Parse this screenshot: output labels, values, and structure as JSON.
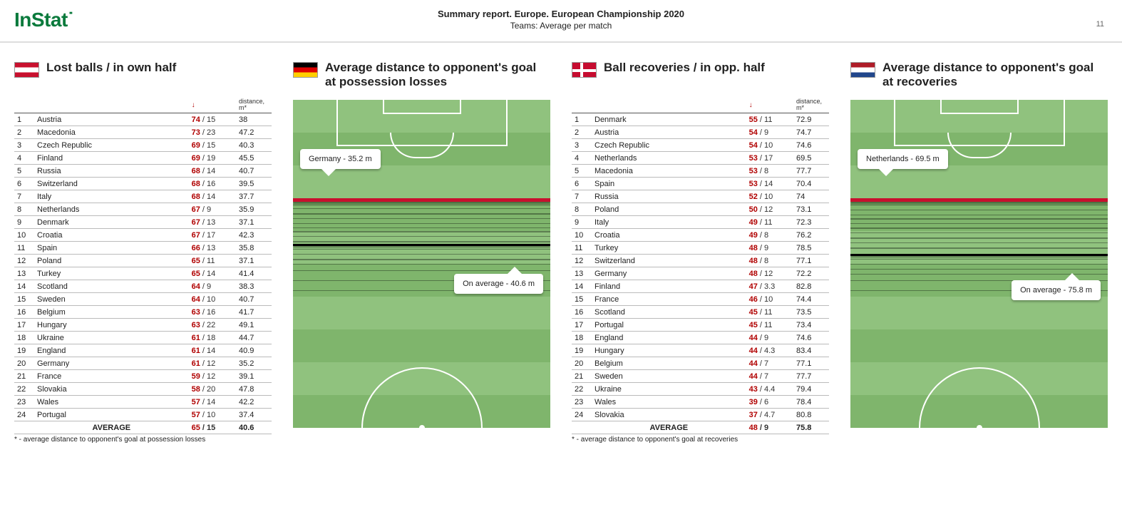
{
  "header": {
    "logo_text": "InStat",
    "title": "Summary report. Europe. European Championship 2020",
    "subtitle": "Teams: Average per match",
    "page_number": "11"
  },
  "col1": {
    "flag": "austria",
    "title": "Lost balls / in own half",
    "sort_icon": "↓",
    "dist_header": "distance, m*",
    "rows": [
      {
        "rank": "1",
        "team": "Austria",
        "v1": "74",
        "v2": "15",
        "dist": "38"
      },
      {
        "rank": "2",
        "team": "Macedonia",
        "v1": "73",
        "v2": "23",
        "dist": "47.2"
      },
      {
        "rank": "3",
        "team": "Czech Republic",
        "v1": "69",
        "v2": "15",
        "dist": "40.3"
      },
      {
        "rank": "4",
        "team": "Finland",
        "v1": "69",
        "v2": "19",
        "dist": "45.5"
      },
      {
        "rank": "5",
        "team": "Russia",
        "v1": "68",
        "v2": "14",
        "dist": "40.7"
      },
      {
        "rank": "6",
        "team": "Switzerland",
        "v1": "68",
        "v2": "16",
        "dist": "39.5"
      },
      {
        "rank": "7",
        "team": "Italy",
        "v1": "68",
        "v2": "14",
        "dist": "37.7"
      },
      {
        "rank": "8",
        "team": "Netherlands",
        "v1": "67",
        "v2": "9",
        "dist": "35.9"
      },
      {
        "rank": "9",
        "team": "Denmark",
        "v1": "67",
        "v2": "13",
        "dist": "37.1"
      },
      {
        "rank": "10",
        "team": "Croatia",
        "v1": "67",
        "v2": "17",
        "dist": "42.3"
      },
      {
        "rank": "11",
        "team": "Spain",
        "v1": "66",
        "v2": "13",
        "dist": "35.8"
      },
      {
        "rank": "12",
        "team": "Poland",
        "v1": "65",
        "v2": "11",
        "dist": "37.1"
      },
      {
        "rank": "13",
        "team": "Turkey",
        "v1": "65",
        "v2": "14",
        "dist": "41.4"
      },
      {
        "rank": "14",
        "team": "Scotland",
        "v1": "64",
        "v2": "9",
        "dist": "38.3"
      },
      {
        "rank": "15",
        "team": "Sweden",
        "v1": "64",
        "v2": "10",
        "dist": "40.7"
      },
      {
        "rank": "16",
        "team": "Belgium",
        "v1": "63",
        "v2": "16",
        "dist": "41.7"
      },
      {
        "rank": "17",
        "team": "Hungary",
        "v1": "63",
        "v2": "22",
        "dist": "49.1"
      },
      {
        "rank": "18",
        "team": "Ukraine",
        "v1": "61",
        "v2": "18",
        "dist": "44.7"
      },
      {
        "rank": "19",
        "team": "England",
        "v1": "61",
        "v2": "14",
        "dist": "40.9"
      },
      {
        "rank": "20",
        "team": "Germany",
        "v1": "61",
        "v2": "12",
        "dist": "35.2"
      },
      {
        "rank": "21",
        "team": "France",
        "v1": "59",
        "v2": "12",
        "dist": "39.1"
      },
      {
        "rank": "22",
        "team": "Slovakia",
        "v1": "58",
        "v2": "20",
        "dist": "47.8"
      },
      {
        "rank": "23",
        "team": "Wales",
        "v1": "57",
        "v2": "14",
        "dist": "42.2"
      },
      {
        "rank": "24",
        "team": "Portugal",
        "v1": "57",
        "v2": "10",
        "dist": "37.4"
      }
    ],
    "average_label": "AVERAGE",
    "average_v1": "65",
    "average_v2": "15",
    "average_dist": "40.6",
    "footnote": "* - average distance to opponent's goal at possession losses"
  },
  "col2": {
    "flag": "germany",
    "title": "Average distance to opponent's goal at possession losses",
    "pitch": {
      "bg_light": "#90c27e",
      "bg_dark": "#7fb56c",
      "line_color": "#ffffff",
      "main_band_color": "#c8102e",
      "main_band_top_pct": 30,
      "avg_band_top_pct": 44,
      "densities": [
        {
          "top_pct": 32,
          "h": 1
        },
        {
          "top_pct": 33,
          "h": 1
        },
        {
          "top_pct": 34.5,
          "h": 2
        },
        {
          "top_pct": 36,
          "h": 1
        },
        {
          "top_pct": 37.5,
          "h": 1
        },
        {
          "top_pct": 39,
          "h": 1
        },
        {
          "top_pct": 40,
          "h": 2
        },
        {
          "top_pct": 41.5,
          "h": 1
        },
        {
          "top_pct": 43,
          "h": 2
        },
        {
          "top_pct": 45.5,
          "h": 1
        },
        {
          "top_pct": 47,
          "h": 1
        },
        {
          "top_pct": 48.5,
          "h": 2
        },
        {
          "top_pct": 50,
          "h": 1
        },
        {
          "top_pct": 52,
          "h": 1
        },
        {
          "top_pct": 55,
          "h": 1
        },
        {
          "top_pct": 58,
          "h": 1
        }
      ],
      "callout_main": "Germany - 35.2 m",
      "callout_main_top_pct": 15,
      "callout_avg": "On average - 40.6 m",
      "callout_avg_top_pct": 53
    }
  },
  "col3": {
    "flag": "denmark",
    "title": "Ball recoveries / in opp. half",
    "sort_icon": "↓",
    "dist_header": "distance, m*",
    "rows": [
      {
        "rank": "1",
        "team": "Denmark",
        "v1": "55",
        "v2": "11",
        "dist": "72.9"
      },
      {
        "rank": "2",
        "team": "Austria",
        "v1": "54",
        "v2": "9",
        "dist": "74.7"
      },
      {
        "rank": "3",
        "team": "Czech Republic",
        "v1": "54",
        "v2": "10",
        "dist": "74.6"
      },
      {
        "rank": "4",
        "team": "Netherlands",
        "v1": "53",
        "v2": "17",
        "dist": "69.5"
      },
      {
        "rank": "5",
        "team": "Macedonia",
        "v1": "53",
        "v2": "8",
        "dist": "77.7"
      },
      {
        "rank": "6",
        "team": "Spain",
        "v1": "53",
        "v2": "14",
        "dist": "70.4"
      },
      {
        "rank": "7",
        "team": "Russia",
        "v1": "52",
        "v2": "10",
        "dist": "74"
      },
      {
        "rank": "8",
        "team": "Poland",
        "v1": "50",
        "v2": "12",
        "dist": "73.1"
      },
      {
        "rank": "9",
        "team": "Italy",
        "v1": "49",
        "v2": "11",
        "dist": "72.3"
      },
      {
        "rank": "10",
        "team": "Croatia",
        "v1": "49",
        "v2": "8",
        "dist": "76.2"
      },
      {
        "rank": "11",
        "team": "Turkey",
        "v1": "48",
        "v2": "9",
        "dist": "78.5"
      },
      {
        "rank": "12",
        "team": "Switzerland",
        "v1": "48",
        "v2": "8",
        "dist": "77.1"
      },
      {
        "rank": "13",
        "team": "Germany",
        "v1": "48",
        "v2": "12",
        "dist": "72.2"
      },
      {
        "rank": "14",
        "team": "Finland",
        "v1": "47",
        "v2": "3.3",
        "dist": "82.8"
      },
      {
        "rank": "15",
        "team": "France",
        "v1": "46",
        "v2": "10",
        "dist": "74.4"
      },
      {
        "rank": "16",
        "team": "Scotland",
        "v1": "45",
        "v2": "11",
        "dist": "73.5"
      },
      {
        "rank": "17",
        "team": "Portugal",
        "v1": "45",
        "v2": "11",
        "dist": "73.4"
      },
      {
        "rank": "18",
        "team": "England",
        "v1": "44",
        "v2": "9",
        "dist": "74.6"
      },
      {
        "rank": "19",
        "team": "Hungary",
        "v1": "44",
        "v2": "4.3",
        "dist": "83.4"
      },
      {
        "rank": "20",
        "team": "Belgium",
        "v1": "44",
        "v2": "7",
        "dist": "77.1"
      },
      {
        "rank": "21",
        "team": "Sweden",
        "v1": "44",
        "v2": "7",
        "dist": "77.7"
      },
      {
        "rank": "22",
        "team": "Ukraine",
        "v1": "43",
        "v2": "4.4",
        "dist": "79.4"
      },
      {
        "rank": "23",
        "team": "Wales",
        "v1": "39",
        "v2": "6",
        "dist": "78.4"
      },
      {
        "rank": "24",
        "team": "Slovakia",
        "v1": "37",
        "v2": "4.7",
        "dist": "80.8"
      }
    ],
    "average_label": "AVERAGE",
    "average_v1": "48",
    "average_v2": "9",
    "average_dist": "75.8",
    "footnote": "* - average distance to opponent's goal at recoveries"
  },
  "col4": {
    "flag": "netherlands",
    "title": "Average distance to opponent's goal at recoveries",
    "pitch": {
      "bg_light": "#90c27e",
      "bg_dark": "#7fb56c",
      "line_color": "#ffffff",
      "main_band_color": "#c8102e",
      "main_band_top_pct": 30,
      "avg_band_top_pct": 47,
      "densities": [
        {
          "top_pct": 32,
          "h": 1
        },
        {
          "top_pct": 33.5,
          "h": 1
        },
        {
          "top_pct": 35,
          "h": 1
        },
        {
          "top_pct": 36,
          "h": 2
        },
        {
          "top_pct": 37.5,
          "h": 1
        },
        {
          "top_pct": 39,
          "h": 2
        },
        {
          "top_pct": 40.5,
          "h": 1
        },
        {
          "top_pct": 42,
          "h": 2
        },
        {
          "top_pct": 43.5,
          "h": 1
        },
        {
          "top_pct": 45,
          "h": 2
        },
        {
          "top_pct": 48.5,
          "h": 1
        },
        {
          "top_pct": 50,
          "h": 1
        },
        {
          "top_pct": 51.5,
          "h": 1
        },
        {
          "top_pct": 53,
          "h": 1
        },
        {
          "top_pct": 55,
          "h": 1
        },
        {
          "top_pct": 58,
          "h": 1
        }
      ],
      "callout_main": "Netherlands - 69.5 m",
      "callout_main_top_pct": 15,
      "callout_avg": "On average - 75.8 m",
      "callout_avg_top_pct": 55
    }
  }
}
